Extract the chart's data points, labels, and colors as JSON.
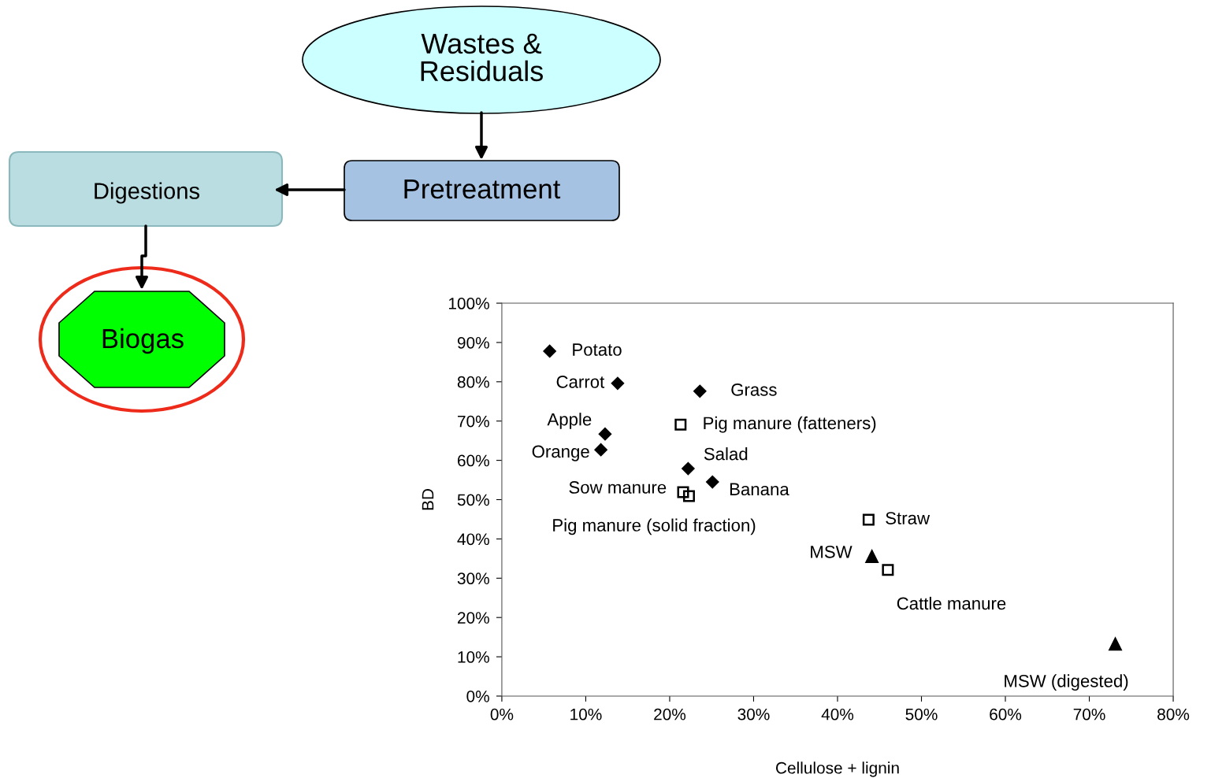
{
  "chart_data": [
    {
      "type": "other",
      "annotations": [
        "Wastes &\nResiduals",
        "Pretreatment",
        "Digestions",
        "Biogas"
      ]
    },
    {
      "type": "scatter",
      "xlabel": "Cellulose + lignin",
      "ylabel": "BD",
      "grid": false,
      "xlim": [
        0,
        80
      ],
      "ylim": [
        0,
        100
      ],
      "xticks": [
        {
          "value": 0,
          "label": "0%"
        },
        {
          "value": 10,
          "label": "10%"
        },
        {
          "value": 20,
          "label": "20%"
        },
        {
          "value": 30,
          "label": "30%"
        },
        {
          "value": 40,
          "label": "40%"
        },
        {
          "value": 50,
          "label": "50%"
        },
        {
          "value": 60,
          "label": "60%"
        },
        {
          "value": 70,
          "label": "70%"
        },
        {
          "value": 80,
          "label": "80%"
        }
      ],
      "yticks": [
        {
          "value": 0,
          "label": "0%"
        },
        {
          "value": 10,
          "label": "10%"
        },
        {
          "value": 20,
          "label": "20%"
        },
        {
          "value": 30,
          "label": "30%"
        },
        {
          "value": 40,
          "label": "40%"
        },
        {
          "value": 50,
          "label": "50%"
        },
        {
          "value": 60,
          "label": "60%"
        },
        {
          "value": 70,
          "label": "70%"
        },
        {
          "value": 80,
          "label": "80%"
        },
        {
          "value": 90,
          "label": "90%"
        },
        {
          "value": 100,
          "label": "100%"
        }
      ],
      "series": [
        {
          "color": "#000000",
          "marker": "diamond",
          "x": [
            5.7,
            13.8,
            23.6,
            12.3,
            11.8,
            22.2,
            25.1
          ],
          "values": [
            87.8,
            79.6,
            77.6,
            66.7,
            62.7,
            57.9,
            54.5
          ]
        },
        {
          "color": "#000000",
          "marker": "square",
          "x": [
            21.3,
            21.6,
            22.3,
            43.7,
            46.0
          ],
          "values": [
            69.1,
            51.9,
            50.9,
            44.9,
            32.1
          ]
        },
        {
          "color": "#000000",
          "marker": "triangle",
          "x": [
            44.1,
            73.1
          ],
          "values": [
            35.5,
            13.2
          ]
        }
      ],
      "annotations": [
        {
          "text": "Potato",
          "x": 5.7,
          "y": 87.8
        },
        {
          "text": "Carrot",
          "x": 13.8,
          "y": 79.6
        },
        {
          "text": "Grass",
          "x": 23.6,
          "y": 77.6
        },
        {
          "text": "Pig manure (fatteners)",
          "x": 21.3,
          "y": 69.1
        },
        {
          "text": "Apple",
          "x": 12.3,
          "y": 66.7
        },
        {
          "text": "Orange",
          "x": 11.8,
          "y": 62.7
        },
        {
          "text": "Salad",
          "x": 22.2,
          "y": 57.9
        },
        {
          "text": "Banana",
          "x": 25.1,
          "y": 54.5
        },
        {
          "text": "Sow manure",
          "x": 21.6,
          "y": 51.9
        },
        {
          "text": "Pig manure (solid fraction)",
          "x": 22.3,
          "y": 50.9
        },
        {
          "text": "Straw",
          "x": 43.7,
          "y": 44.9
        },
        {
          "text": "MSW",
          "x": 44.1,
          "y": 35.5
        },
        {
          "text": "Cattle manure",
          "x": 46.0,
          "y": 32.1
        },
        {
          "text": "MSW (digested)",
          "x": 73.1,
          "y": 13.2
        }
      ]
    }
  ]
}
